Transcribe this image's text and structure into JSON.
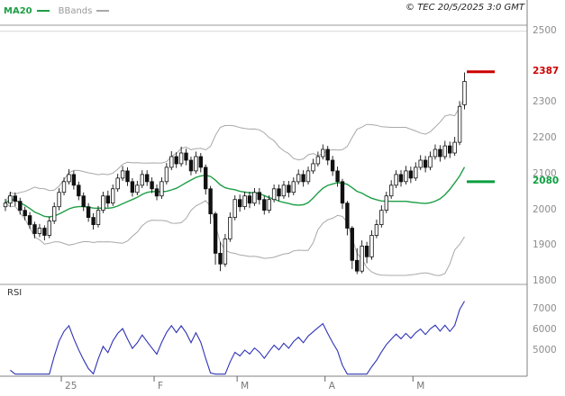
{
  "header": {
    "ma_label": "MA20",
    "bbands_label": "BBands",
    "copyright": "© TEC 20/5/2025 3:0 GMT"
  },
  "colors": {
    "background": "#ffffff",
    "candle": "#111111",
    "ma20": "#1d9e45",
    "bbands": "#a8a8a8",
    "rsi_line": "#2f33b5",
    "resistance": "#cc0000",
    "support": "#0b9f3f",
    "axis_text": "#8c8c8c",
    "frame": "#9a9a9a",
    "grid": "#d9d9d9"
  },
  "chart_data": {
    "type": "candlestick",
    "title": "",
    "ohlc_order": [
      "open",
      "high",
      "low",
      "close"
    ],
    "price_axis": {
      "values": [
        2500,
        2300,
        2200,
        2100,
        2000,
        1900,
        1800
      ],
      "range": [
        1793,
        2517
      ]
    },
    "levels": {
      "resistance": {
        "label": "2387",
        "value": 2387,
        "color": "#cc0000"
      },
      "support": {
        "label": "2080",
        "value": 2080,
        "color": "#0b9f3f"
      }
    },
    "x_axis": {
      "labels": [
        "25",
        "F",
        "M",
        "A",
        "M"
      ],
      "tick_indices": [
        12,
        31,
        48,
        66,
        84
      ]
    },
    "overlays": [
      {
        "name": "MA20",
        "period": 20,
        "color": "#1d9e45"
      },
      {
        "name": "BBands",
        "period": 20,
        "stddev": 2,
        "color": "#a8a8a8"
      }
    ],
    "candles": [
      [
        2010,
        2032,
        1998,
        2020
      ],
      [
        2020,
        2052,
        2010,
        2040
      ],
      [
        2040,
        2050,
        2012,
        2025
      ],
      [
        2025,
        2035,
        1988,
        2000
      ],
      [
        2000,
        2010,
        1972,
        1985
      ],
      [
        1985,
        1995,
        1948,
        1960
      ],
      [
        1960,
        1968,
        1922,
        1935
      ],
      [
        1935,
        1962,
        1925,
        1950
      ],
      [
        1950,
        1958,
        1916,
        1930
      ],
      [
        1930,
        1982,
        1922,
        1970
      ],
      [
        1970,
        2022,
        1962,
        2010
      ],
      [
        2010,
        2062,
        2000,
        2050
      ],
      [
        2050,
        2092,
        2042,
        2080
      ],
      [
        2080,
        2115,
        2072,
        2100
      ],
      [
        2100,
        2110,
        2058,
        2070
      ],
      [
        2070,
        2080,
        2028,
        2040
      ],
      [
        2040,
        2050,
        1998,
        2010
      ],
      [
        2010,
        2020,
        1968,
        1980
      ],
      [
        1980,
        1992,
        1946,
        1960
      ],
      [
        1960,
        2012,
        1952,
        2000
      ],
      [
        2000,
        2052,
        1992,
        2040
      ],
      [
        2040,
        2055,
        2008,
        2020
      ],
      [
        2020,
        2072,
        2012,
        2060
      ],
      [
        2060,
        2102,
        2052,
        2090
      ],
      [
        2090,
        2124,
        2082,
        2110
      ],
      [
        2110,
        2120,
        2068,
        2080
      ],
      [
        2080,
        2090,
        2038,
        2050
      ],
      [
        2050,
        2082,
        2042,
        2070
      ],
      [
        2070,
        2112,
        2062,
        2100
      ],
      [
        2100,
        2112,
        2068,
        2080
      ],
      [
        2080,
        2092,
        2048,
        2060
      ],
      [
        2060,
        2072,
        2028,
        2040
      ],
      [
        2040,
        2092,
        2032,
        2080
      ],
      [
        2080,
        2132,
        2072,
        2120
      ],
      [
        2120,
        2165,
        2112,
        2150
      ],
      [
        2150,
        2162,
        2118,
        2130
      ],
      [
        2130,
        2178,
        2122,
        2160
      ],
      [
        2160,
        2172,
        2126,
        2140
      ],
      [
        2140,
        2150,
        2098,
        2110
      ],
      [
        2110,
        2164,
        2102,
        2150
      ],
      [
        2150,
        2160,
        2106,
        2120
      ],
      [
        2120,
        2128,
        2044,
        2060
      ],
      [
        2060,
        2068,
        1962,
        1990
      ],
      [
        1990,
        1996,
        1848,
        1880
      ],
      [
        1880,
        1912,
        1830,
        1850
      ],
      [
        1850,
        1934,
        1842,
        1920
      ],
      [
        1920,
        1994,
        1912,
        1980
      ],
      [
        1980,
        2042,
        1972,
        2030
      ],
      [
        2030,
        2044,
        1996,
        2010
      ],
      [
        2010,
        2052,
        2002,
        2040
      ],
      [
        2040,
        2052,
        2006,
        2020
      ],
      [
        2020,
        2062,
        2012,
        2050
      ],
      [
        2050,
        2062,
        2016,
        2030
      ],
      [
        2030,
        2040,
        1988,
        2000
      ],
      [
        2000,
        2042,
        1992,
        2030
      ],
      [
        2030,
        2072,
        2022,
        2060
      ],
      [
        2060,
        2072,
        2026,
        2040
      ],
      [
        2040,
        2082,
        2032,
        2070
      ],
      [
        2070,
        2082,
        2036,
        2050
      ],
      [
        2050,
        2092,
        2042,
        2080
      ],
      [
        2080,
        2114,
        2072,
        2100
      ],
      [
        2100,
        2112,
        2066,
        2080
      ],
      [
        2080,
        2122,
        2072,
        2110
      ],
      [
        2110,
        2144,
        2102,
        2130
      ],
      [
        2130,
        2164,
        2122,
        2150
      ],
      [
        2150,
        2184,
        2142,
        2170
      ],
      [
        2170,
        2180,
        2126,
        2140
      ],
      [
        2140,
        2152,
        2096,
        2110
      ],
      [
        2110,
        2122,
        2066,
        2080
      ],
      [
        2080,
        2088,
        2004,
        2020
      ],
      [
        2020,
        2026,
        1930,
        1950
      ],
      [
        1950,
        1956,
        1836,
        1860
      ],
      [
        1860,
        1894,
        1822,
        1830
      ],
      [
        1830,
        1916,
        1824,
        1900
      ],
      [
        1900,
        1912,
        1852,
        1870
      ],
      [
        1870,
        1944,
        1862,
        1930
      ],
      [
        1930,
        1974,
        1922,
        1960
      ],
      [
        1960,
        2014,
        1952,
        2000
      ],
      [
        2000,
        2052,
        1992,
        2040
      ],
      [
        2040,
        2084,
        2032,
        2070
      ],
      [
        2070,
        2112,
        2062,
        2100
      ],
      [
        2100,
        2112,
        2066,
        2080
      ],
      [
        2080,
        2124,
        2072,
        2110
      ],
      [
        2110,
        2122,
        2076,
        2090
      ],
      [
        2090,
        2134,
        2082,
        2120
      ],
      [
        2120,
        2154,
        2112,
        2140
      ],
      [
        2140,
        2152,
        2106,
        2120
      ],
      [
        2120,
        2164,
        2112,
        2150
      ],
      [
        2150,
        2184,
        2142,
        2170
      ],
      [
        2170,
        2182,
        2136,
        2150
      ],
      [
        2150,
        2194,
        2142,
        2180
      ],
      [
        2180,
        2192,
        2146,
        2160
      ],
      [
        2160,
        2205,
        2152,
        2190
      ],
      [
        2190,
        2305,
        2182,
        2290
      ],
      [
        2295,
        2385,
        2282,
        2360
      ]
    ],
    "rsi": {
      "label": "RSI",
      "period": 14,
      "scale": 100,
      "axis_values": [
        7000,
        6000,
        5000
      ],
      "range": [
        3800,
        8200
      ]
    }
  }
}
